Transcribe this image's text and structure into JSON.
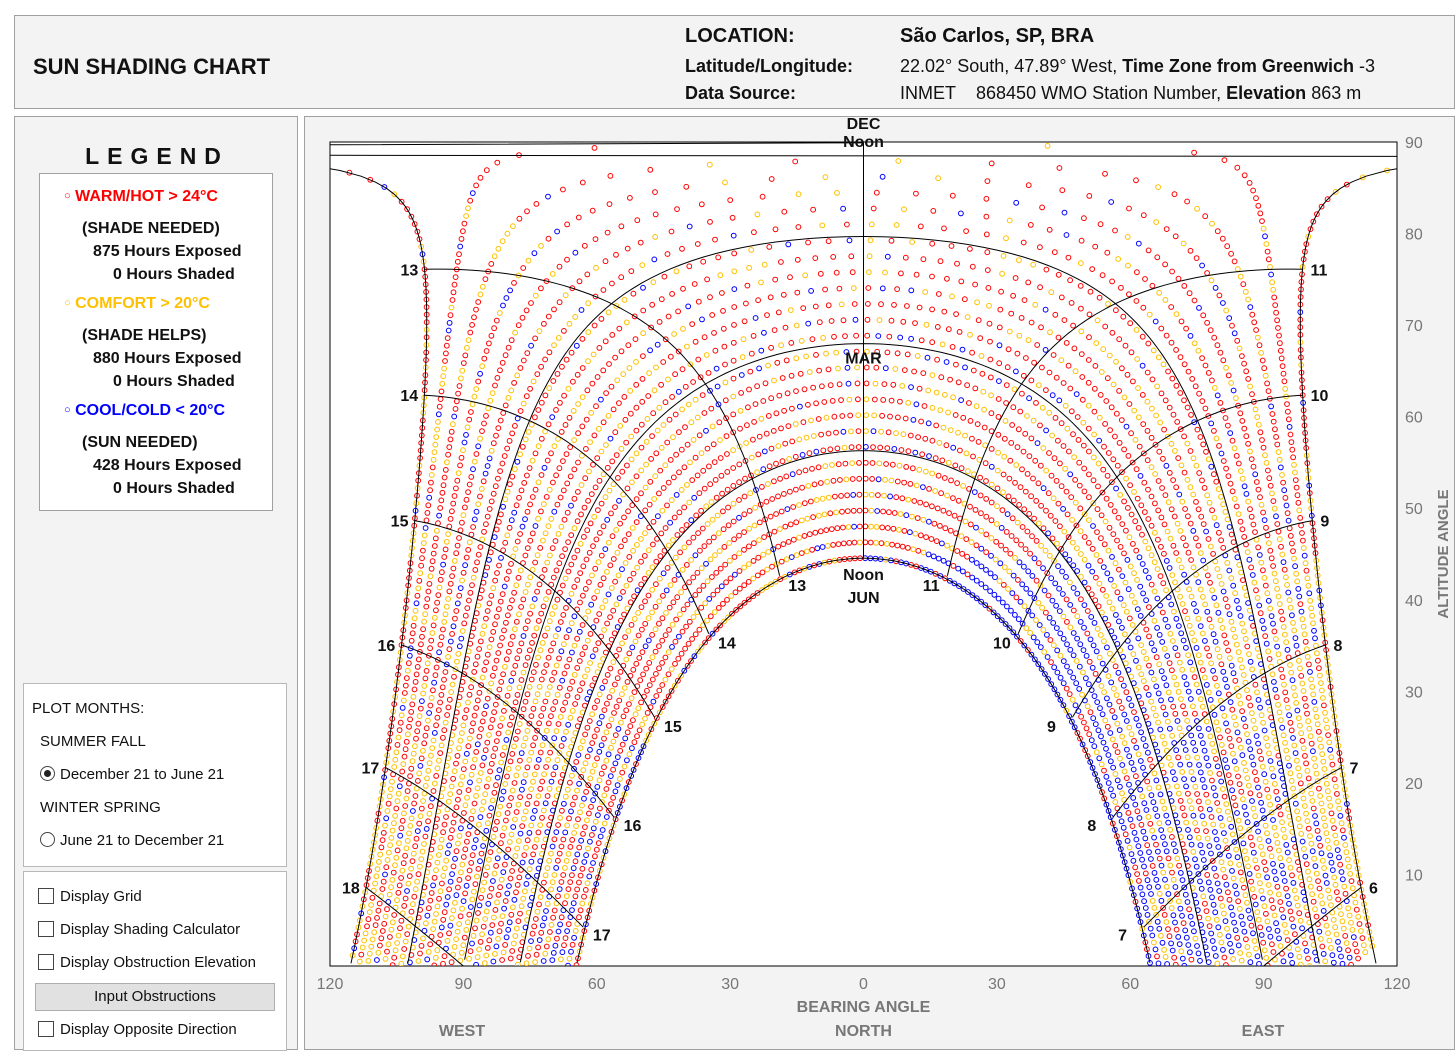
{
  "header": {
    "title": "SUN SHADING CHART",
    "location_label": "LOCATION:",
    "location_value": "São Carlos, SP, BRA",
    "latlon_label": "Latitude/Longitude:",
    "latlon_value": "22.02° South, 47.89° West,",
    "tz_label": "Time Zone from Greenwich",
    "tz_value": "-3",
    "source_label": "Data Source:",
    "source_value": "INMET",
    "station_value": "868450 WMO Station Number,",
    "elevation_label": "Elevation",
    "elevation_value": "863 m"
  },
  "legend": {
    "title": "LEGEND",
    "warm": {
      "label": "WARM/HOT  > 24°C",
      "note": "(SHADE NEEDED)",
      "exposed": "875 Hours Exposed",
      "shaded": "0 Hours Shaded",
      "color": "#ff0000"
    },
    "comfort": {
      "label": "COMFORT  > 20°C",
      "note": "(SHADE HELPS)",
      "exposed": "880 Hours Exposed",
      "shaded": "0 Hours Shaded",
      "color": "#ffc000"
    },
    "cool": {
      "label": "COOL/COLD  < 20°C",
      "note": "(SUN NEEDED)",
      "exposed": "428 Hours Exposed",
      "shaded": "0 Hours Shaded",
      "color": "#0000ff"
    }
  },
  "plot_months": {
    "label": "PLOT MONTHS:",
    "option1_heading": "SUMMER FALL",
    "option1_label": "December 21 to June 21",
    "option2_heading": "WINTER SPRING",
    "option2_label": "June 21 to December 21",
    "selected": "option1"
  },
  "options": {
    "display_grid": "Display Grid",
    "display_shading_calculator": "Display Shading Calculator",
    "display_obstruction_elevation": "Display Obstruction Elevation",
    "input_obstructions": "Input Obstructions",
    "display_opposite_direction": "Display Opposite Direction"
  },
  "chart_data": {
    "type": "scatter",
    "title": "",
    "xlabel": "BEARING ANGLE",
    "ylabel": "ALTITUDE ANGLE",
    "xlim": [
      -120,
      120
    ],
    "ylim": [
      0,
      90
    ],
    "x_ticks": [
      "120",
      "90",
      "60",
      "30",
      "0",
      "30",
      "60",
      "90",
      "120"
    ],
    "y_ticks": [
      "10",
      "20",
      "30",
      "40",
      "50",
      "60",
      "70",
      "80",
      "90"
    ],
    "direction_labels": {
      "left": "WEST",
      "center": "NORTH",
      "right": "EAST"
    },
    "month_labels": {
      "dec": "DEC",
      "mar": "MAR",
      "jun": "JUN",
      "noon": "Noon"
    },
    "hour_labels_left": [
      13,
      14,
      15,
      16,
      17,
      18
    ],
    "hour_labels_right": [
      11,
      10,
      9,
      8,
      7,
      6
    ],
    "hour_labels_inner_left": [
      13,
      14,
      15,
      16,
      17
    ],
    "hour_labels_inner_right": [
      11,
      10,
      9,
      8,
      7
    ],
    "colors": {
      "warm": "#ff0000",
      "comfort": "#ffc000",
      "cool": "#0000ff",
      "grid": "#000000"
    },
    "site_latitude_deg": -22.02,
    "series": [
      {
        "name": "WARM/HOT  > 24°C"
      },
      {
        "name": "COMFORT  > 20°C"
      },
      {
        "name": "COOL/COLD  < 20°C"
      }
    ],
    "grid": true,
    "legend_position": "left-panel"
  }
}
